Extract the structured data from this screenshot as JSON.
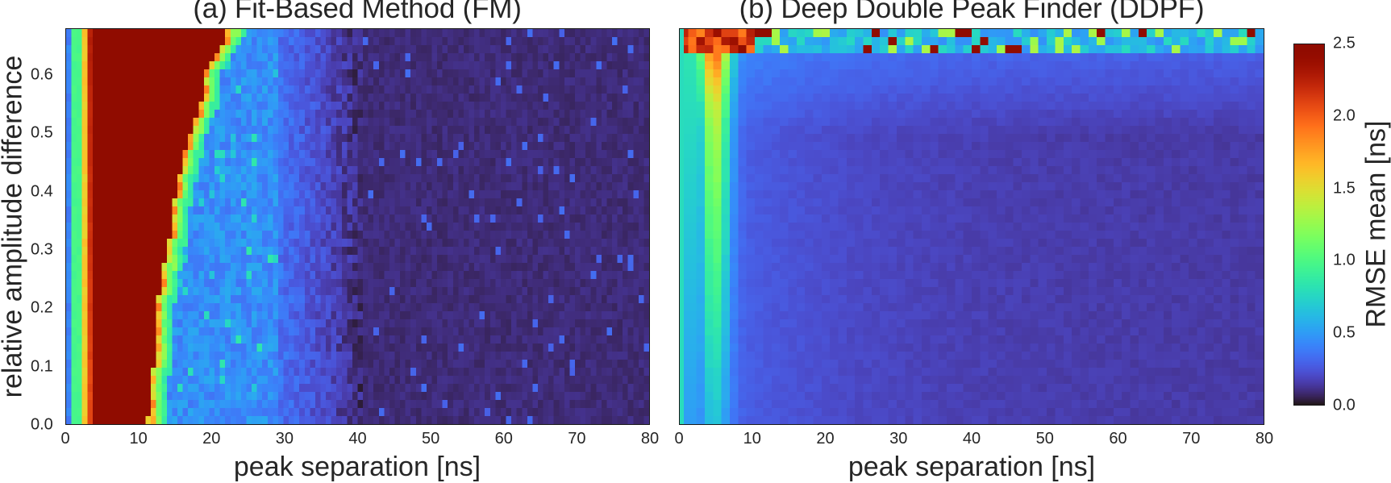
{
  "figure": {
    "panels": [
      {
        "title": "(a) Fit-Based Method (FM)",
        "xlabel": "peak separation [ns]",
        "ylabel": "relative amplitude difference",
        "xticks": [
          "0",
          "10",
          "20",
          "30",
          "40",
          "50",
          "60",
          "70",
          "80"
        ],
        "yticks": [
          "0.0",
          "0.1",
          "0.2",
          "0.3",
          "0.4",
          "0.5",
          "0.6"
        ]
      },
      {
        "title": "(b) Deep Double Peak Finder (DDPF)",
        "xlabel": "peak separation [ns]",
        "xticks": [
          "0",
          "10",
          "20",
          "30",
          "40",
          "50",
          "60",
          "70",
          "80"
        ]
      }
    ],
    "colorbar": {
      "label": "RMSE mean [ns]",
      "ticks": [
        "0.0",
        "0.5",
        "1.0",
        "1.5",
        "2.0",
        "2.5"
      ]
    }
  },
  "chart_data": [
    {
      "type": "heatmap",
      "title": "(a) Fit-Based Method (FM)",
      "xlabel": "peak separation [ns]",
      "ylabel": "relative amplitude difference",
      "xlim": [
        0,
        80
      ],
      "ylim": [
        0,
        0.68
      ],
      "grid": false,
      "colormap": "turbo",
      "vmin": 0.0,
      "vmax": 2.5,
      "n_x_bins": 110,
      "n_y_bins": 49,
      "description": "Columns at 0-4 ns show a vertical band rising from ~0.4 (blue) to 1.0 (green), 1.6 (yellow), 2.1 (orange); from ~4 ns up to a failure boundary RMSE saturates at >=2.5 (dark red). The boundary moves from ~11 ns at amplitude diff 0 to ~22 ns at 0.68. Just past the boundary RMSE drops through ~1.5-1.0 into a noisy blue (~0.4-0.6) plateau out to ~28-30 ns, then decays to ~0.2-0.3 between 30-40 ns and is ~0.05-0.1 beyond ~42 ns with sparse noisy cells up to ~0.3.",
      "boundary_ns_by_amp": [
        [
          0.0,
          11.2
        ],
        [
          0.1,
          12.0
        ],
        [
          0.2,
          12.5
        ],
        [
          0.25,
          13.0
        ],
        [
          0.3,
          14.0
        ],
        [
          0.35,
          14.5
        ],
        [
          0.4,
          15.0
        ],
        [
          0.45,
          16.0
        ],
        [
          0.5,
          17.0
        ],
        [
          0.55,
          18.5
        ],
        [
          0.6,
          19.0
        ],
        [
          0.65,
          21.0
        ],
        [
          0.68,
          22.5
        ]
      ],
      "approx_values": [
        {
          "x_ns": 0.5,
          "rmse": 0.4
        },
        {
          "x_ns": 1.5,
          "rmse": 0.95
        },
        {
          "x_ns": 2.5,
          "rmse": 1.6
        },
        {
          "x_ns": 3.5,
          "rmse": 2.2
        },
        {
          "x_ns": 7,
          "rmse": 2.5
        },
        {
          "x_ns": 25,
          "rmse": 0.5
        },
        {
          "x_ns": 35,
          "rmse": 0.25
        },
        {
          "x_ns": 50,
          "rmse": 0.08
        },
        {
          "x_ns": 75,
          "rmse": 0.06
        }
      ]
    },
    {
      "type": "heatmap",
      "title": "(b) Deep Double Peak Finder (DDPF)",
      "xlabel": "peak separation [ns]",
      "ylabel": "relative amplitude difference",
      "xlim": [
        0,
        80
      ],
      "ylim": [
        0,
        0.68
      ],
      "grid": false,
      "colormap": "turbo",
      "vmin": 0.0,
      "vmax": 2.5,
      "n_x_bins": 70,
      "n_y_bins": 49,
      "description": "Low error everywhere except a ridge at 3-7 ns (RMSE ~0.9-1.4 at mid/high amplitude difference, up to ~1.8-2.2 near the top) and a noisy top rows (amp diff > 0.62) with sporadic cells of 1.0-2.5. Thin cyan (~0.8) first column at x~0. Background ~0.35 near 10 ns decaying to ~0.15 beyond 40 ns; slightly higher (~0.3-0.4) for amp diff > 0.55.",
      "approx_values": [
        {
          "x_ns": 0.3,
          "rmse": 0.8
        },
        {
          "x_ns": 1.5,
          "rmse": 0.55
        },
        {
          "x_ns": 4.5,
          "rmse": 1.2
        },
        {
          "x_ns": 8,
          "rmse": 0.5
        },
        {
          "x_ns": 20,
          "rmse": 0.3
        },
        {
          "x_ns": 40,
          "rmse": 0.18
        },
        {
          "x_ns": 80,
          "rmse": 0.15
        }
      ]
    }
  ]
}
